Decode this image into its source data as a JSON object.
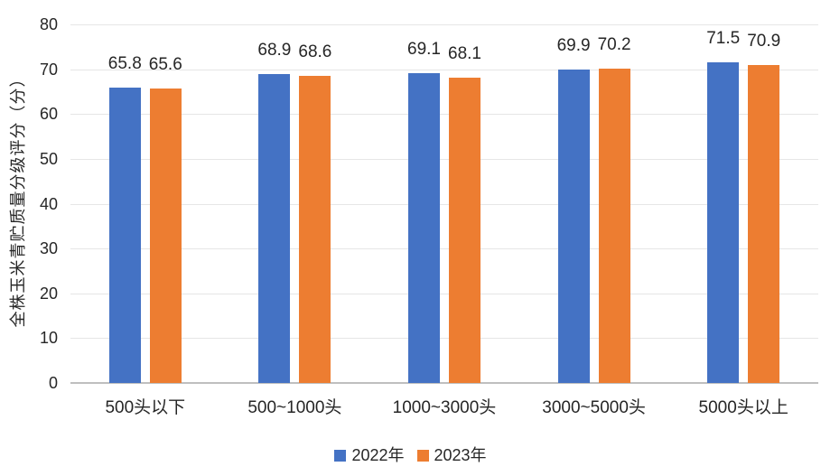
{
  "chart_data": {
    "type": "bar",
    "title": "",
    "categories": [
      "500头以下",
      "500~1000头",
      "1000~3000头",
      "3000~5000头",
      "5000头以上"
    ],
    "series": [
      {
        "name": "2022年",
        "color": "#4472C4",
        "values": [
          65.8,
          68.9,
          69.1,
          69.9,
          71.5
        ]
      },
      {
        "name": "2023年",
        "color": "#ED7D31",
        "values": [
          65.6,
          68.6,
          68.1,
          70.2,
          70.9
        ]
      }
    ],
    "xlabel": "",
    "ylabel": "全株玉米青贮质量分级评分（分）",
    "ylim": [
      0,
      80
    ],
    "ytick_step": 10,
    "grid": "horizontal",
    "legend_position": "bottom",
    "value_labels": true
  },
  "colors": {
    "gridline": "#E6E6E6",
    "axis_line": "#BFBFBF",
    "text": "#262626"
  }
}
